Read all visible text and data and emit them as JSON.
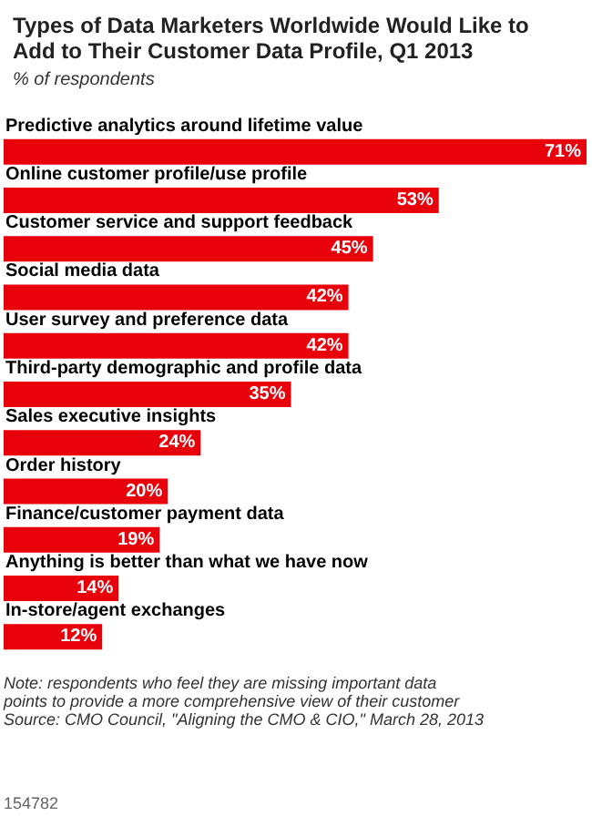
{
  "chart_data": {
    "type": "bar",
    "orientation": "horizontal",
    "title": "Types of Data Marketers Worldwide Would Like to Add to Their Customer Data Profile, Q1 2013",
    "subtitle": "% of respondents",
    "categories": [
      "Predictive analytics around lifetime value",
      "Online customer profile/use profile",
      "Customer service and support feedback",
      "Social media data",
      "User survey and preference data",
      "Third-party demographic and profile data",
      "Sales executive insights",
      "Order history",
      "Finance/customer payment data",
      "Anything is better than what we have now",
      "In-store/agent exchanges"
    ],
    "values": [
      71,
      53,
      45,
      42,
      42,
      35,
      24,
      20,
      19,
      14,
      12
    ],
    "value_labels": [
      "71%",
      "53%",
      "45%",
      "42%",
      "42%",
      "35%",
      "24%",
      "20%",
      "19%",
      "14%",
      "12%"
    ],
    "color": "#e8000b",
    "annotations": [
      "Note: respondents who feel they are missing important data points to provide a more comprehensive view of their customer",
      "Source: CMO Council, \"Aligning the CMO & CIO,\" March 28, 2013",
      "154782"
    ]
  }
}
